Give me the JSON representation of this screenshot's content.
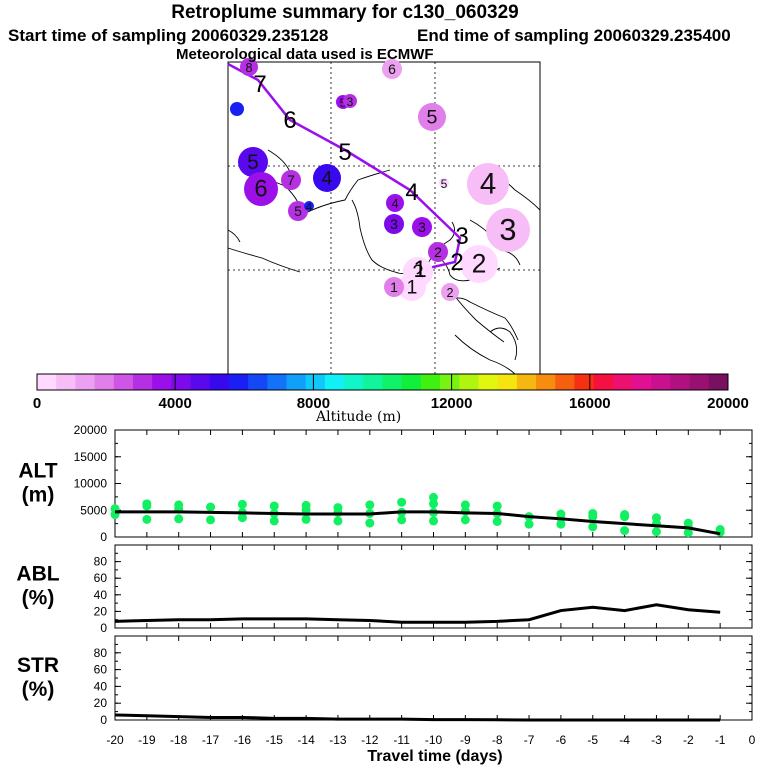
{
  "header": {
    "title": "Retroplume summary for c130_060329",
    "start_label": "Start time of sampling 20060329.235128",
    "end_label": "End time of sampling 20060329.235400",
    "met_label": "Meteorological data used is ECMWF"
  },
  "colorbar": {
    "label": "Altitude (m)",
    "ticks": [
      "0",
      "4000",
      "8000",
      "12000",
      "16000",
      "20000"
    ],
    "colors": [
      "#ffd9ff",
      "#f7bdf7",
      "#eda0f0",
      "#e17fea",
      "#cf55e6",
      "#b52fe3",
      "#9b10e9",
      "#7d0aeb",
      "#5a08ee",
      "#3808ef",
      "#1a20f4",
      "#1448f6",
      "#1272f8",
      "#10a0fa",
      "#10c8fa",
      "#10f0f6",
      "#10f6c8",
      "#10f49a",
      "#10f26a",
      "#10f03a",
      "#40f010",
      "#78f210",
      "#b0f410",
      "#e2f610",
      "#f6e410",
      "#f6b810",
      "#f68c10",
      "#f65e10",
      "#f63010",
      "#f61040",
      "#ee1070",
      "#e01090",
      "#c81090",
      "#b01080",
      "#981070",
      "#7a1060"
    ]
  },
  "map": {
    "trajectory_labels": [
      "7",
      "6",
      "5",
      "4",
      "3",
      "2",
      "1"
    ],
    "trajectory_color": "#9a0ff0",
    "circles": [
      {
        "lab": "8",
        "c": "#b52fe3"
      },
      {
        "lab": "",
        "c": "#1a20f4"
      },
      {
        "lab": "6",
        "c": "#eda0f0"
      },
      {
        "lab": "5",
        "c": "#9b10e9"
      },
      {
        "lab": "3",
        "c": "#b52fe3"
      },
      {
        "lab": "5",
        "c": "#e17fea"
      },
      {
        "lab": "5",
        "c": "#5a08ee"
      },
      {
        "lab": "6",
        "c": "#9b10e9"
      },
      {
        "lab": "7",
        "c": "#b52fe3"
      },
      {
        "lab": "4",
        "c": "#3808ef"
      },
      {
        "lab": "5",
        "c": "#b52fe3"
      },
      {
        "lab": "4",
        "c": "#1a20f4"
      },
      {
        "lab": "4",
        "c": "#9b10e9"
      },
      {
        "lab": "3",
        "c": "#7d0aeb"
      },
      {
        "lab": "3",
        "c": "#9b10e9"
      },
      {
        "lab": "4",
        "c": "#f7bdf7"
      },
      {
        "lab": "3",
        "c": "#f7bdf7"
      },
      {
        "lab": "5",
        "c": "#ffd9ff"
      },
      {
        "lab": "2",
        "c": "#b52fe3"
      },
      {
        "lab": "2",
        "c": "#ffd9ff"
      },
      {
        "lab": "2",
        "c": "#ffd9ff"
      },
      {
        "lab": "1",
        "c": "#ffd9ff"
      },
      {
        "lab": "1",
        "c": "#e17fea"
      },
      {
        "lab": "2",
        "c": "#eda0f0"
      }
    ]
  },
  "chart_data": [
    {
      "type": "scatter",
      "ylabel": "ALT\n(m)",
      "ylabel_lines": [
        "ALT",
        "(m)"
      ],
      "yticks": [
        "20000",
        "15000",
        "10000",
        "5000",
        "0"
      ],
      "ylim": [
        0,
        20000
      ],
      "xlim": [
        -20,
        0
      ],
      "point_color": "#10f060",
      "line_x": [
        -20,
        -19,
        -18,
        -17,
        -16,
        -15,
        -14,
        -13,
        -12,
        -11,
        -10,
        -9,
        -8,
        -7,
        -6,
        -5,
        -4,
        -3,
        -2,
        -1
      ],
      "line_y": [
        4700,
        4700,
        4700,
        4600,
        4500,
        4400,
        4300,
        4300,
        4300,
        4700,
        4700,
        4500,
        4400,
        3800,
        3400,
        2900,
        2500,
        2100,
        1700,
        600
      ],
      "points": [
        {
          "x": -20,
          "y": 4200
        },
        {
          "x": -20,
          "y": 5300
        },
        {
          "x": -19,
          "y": 3300
        },
        {
          "x": -19,
          "y": 5800
        },
        {
          "x": -19,
          "y": 6200
        },
        {
          "x": -18,
          "y": 3400
        },
        {
          "x": -18,
          "y": 5200
        },
        {
          "x": -18,
          "y": 6000
        },
        {
          "x": -17,
          "y": 3200
        },
        {
          "x": -17,
          "y": 5600
        },
        {
          "x": -16,
          "y": 3600
        },
        {
          "x": -16,
          "y": 4600
        },
        {
          "x": -16,
          "y": 6100
        },
        {
          "x": -15,
          "y": 3000
        },
        {
          "x": -15,
          "y": 4400
        },
        {
          "x": -15,
          "y": 5800
        },
        {
          "x": -14,
          "y": 3300
        },
        {
          "x": -14,
          "y": 5000
        },
        {
          "x": -14,
          "y": 5900
        },
        {
          "x": -13,
          "y": 3000
        },
        {
          "x": -13,
          "y": 4600
        },
        {
          "x": -13,
          "y": 5500
        },
        {
          "x": -12,
          "y": 2600
        },
        {
          "x": -12,
          "y": 4400
        },
        {
          "x": -12,
          "y": 6000
        },
        {
          "x": -11,
          "y": 3200
        },
        {
          "x": -11,
          "y": 4600
        },
        {
          "x": -11,
          "y": 6500
        },
        {
          "x": -10,
          "y": 3000
        },
        {
          "x": -10,
          "y": 4600
        },
        {
          "x": -10,
          "y": 6200
        },
        {
          "x": -10,
          "y": 7400
        },
        {
          "x": -9,
          "y": 3200
        },
        {
          "x": -9,
          "y": 4800
        },
        {
          "x": -9,
          "y": 6000
        },
        {
          "x": -8,
          "y": 2900
        },
        {
          "x": -8,
          "y": 4400
        },
        {
          "x": -8,
          "y": 5800
        },
        {
          "x": -7,
          "y": 2400
        },
        {
          "x": -7,
          "y": 3800
        },
        {
          "x": -6,
          "y": 2400
        },
        {
          "x": -6,
          "y": 3500
        },
        {
          "x": -6,
          "y": 4300
        },
        {
          "x": -5,
          "y": 1900
        },
        {
          "x": -5,
          "y": 3800
        },
        {
          "x": -5,
          "y": 4400
        },
        {
          "x": -4,
          "y": 1200
        },
        {
          "x": -4,
          "y": 3800
        },
        {
          "x": -4,
          "y": 4200
        },
        {
          "x": -3,
          "y": 1000
        },
        {
          "x": -3,
          "y": 2500
        },
        {
          "x": -3,
          "y": 3600
        },
        {
          "x": -2,
          "y": 800
        },
        {
          "x": -2,
          "y": 1900
        },
        {
          "x": -2,
          "y": 2600
        },
        {
          "x": -1,
          "y": 900
        },
        {
          "x": -1,
          "y": 1400
        }
      ]
    },
    {
      "type": "line",
      "ylabel_lines": [
        "ABL",
        "(%)"
      ],
      "yticks": [
        "80",
        "60",
        "40",
        "20",
        "0"
      ],
      "ylim": [
        0,
        100
      ],
      "xlim": [
        -20,
        0
      ],
      "x": [
        -20,
        -19,
        -18,
        -17,
        -16,
        -15,
        -14,
        -13,
        -12,
        -11,
        -10,
        -9,
        -8,
        -7,
        -6,
        -5,
        -4,
        -3,
        -2,
        -1
      ],
      "y": [
        8,
        9,
        10,
        10,
        11,
        11,
        11,
        10,
        9,
        7,
        7,
        7,
        8,
        10,
        21,
        25,
        21,
        28,
        22,
        19
      ]
    },
    {
      "type": "line",
      "ylabel_lines": [
        "STR",
        "(%)"
      ],
      "yticks": [
        "80",
        "60",
        "40",
        "20",
        "0"
      ],
      "ylim": [
        0,
        100
      ],
      "xlim": [
        -20,
        0
      ],
      "x": [
        -20,
        -19,
        -18,
        -17,
        -16,
        -15,
        -14,
        -13,
        -12,
        -11,
        -10,
        -9,
        -8,
        -7,
        -6,
        -5,
        -4,
        -3,
        -2,
        -1
      ],
      "y": [
        6,
        5,
        4,
        3,
        3,
        2,
        2,
        1,
        1,
        1,
        0.5,
        0.5,
        0.3,
        0,
        0,
        0,
        0,
        0,
        0,
        0
      ]
    }
  ],
  "xaxis": {
    "ticks": [
      "-20",
      "-19",
      "-18",
      "-17",
      "-16",
      "-15",
      "-14",
      "-13",
      "-12",
      "-11",
      "-10",
      "-9",
      "-8",
      "-7",
      "-6",
      "-5",
      "-4",
      "-3",
      "-2",
      "-1",
      "0"
    ],
    "label": "Travel time (days)"
  }
}
